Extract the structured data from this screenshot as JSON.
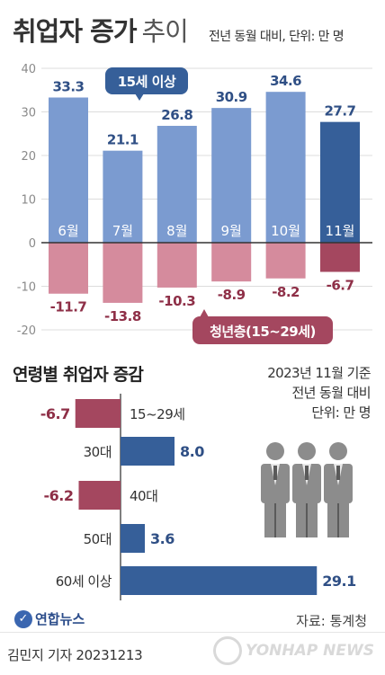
{
  "header": {
    "title_bold": "취업자 증가",
    "title_light": "추이",
    "note": "전년 동월 대비, 단위: 만 명"
  },
  "colors": {
    "blue": "#7b9bd0",
    "blue_dark": "#365f99",
    "pink": "#d58b9d",
    "pink_dark": "#a4475f",
    "label_blue": "#2f4f85",
    "label_red": "#8e2f47"
  },
  "chart_data": [
    {
      "type": "bar",
      "title": "취업자 증가 추이",
      "unit": "만 명",
      "categories": [
        "6월",
        "7월",
        "8월",
        "9월",
        "10월",
        "11월"
      ],
      "series": [
        {
          "name": "15세 이상",
          "values": [
            33.3,
            21.1,
            26.8,
            30.9,
            34.6,
            27.7
          ]
        },
        {
          "name": "청년층(15~29세)",
          "values": [
            -11.7,
            -13.8,
            -10.3,
            -8.9,
            -8.2,
            -6.7
          ]
        }
      ],
      "yticks": [
        40,
        30,
        20,
        10,
        0,
        -10,
        -20
      ],
      "ylim": [
        -20,
        40
      ],
      "highlight_last": true
    },
    {
      "type": "bar",
      "orientation": "horizontal",
      "title": "연령별 취업자 증감",
      "categories": [
        "15~29세",
        "30대",
        "40대",
        "50대",
        "60세 이상"
      ],
      "values": [
        -6.7,
        8.0,
        -6.2,
        3.6,
        29.1
      ],
      "value_labels": [
        "-6.7",
        "8.0",
        "-6.2",
        "3.6",
        "29.1"
      ]
    }
  ],
  "section2": {
    "title": "연령별 취업자 증감",
    "notes": [
      "2023년 11월 기준",
      "전년 동월 대비",
      "단위: 만 명"
    ]
  },
  "icons": {
    "people": "people-group-icon",
    "logo": "yonhap-logo-icon"
  },
  "footer": {
    "logo": "연합뉴스",
    "source": "자료: 통계청",
    "credit": "김민지 기자  20231213",
    "watermark": "YONHAP NEWS"
  }
}
